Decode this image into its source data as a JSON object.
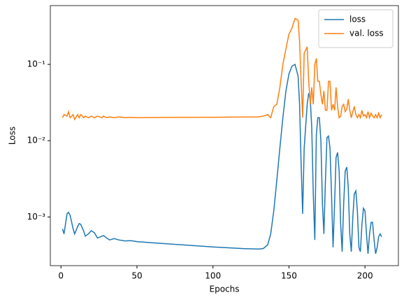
{
  "chart_data": {
    "type": "line",
    "xlabel": "Epochs",
    "ylabel": "Loss",
    "yscale": "log",
    "grid": false,
    "legend": "upper right",
    "xlim": [
      -7,
      222
    ],
    "ylim": [
      0.00023,
      0.59
    ],
    "xticks": [
      0,
      50,
      100,
      150,
      200
    ],
    "yticks": [
      {
        "value": 0.001,
        "label": "10⁻³"
      },
      {
        "value": 0.01,
        "label": "10⁻²"
      },
      {
        "value": 0.1,
        "label": "10⁻¹"
      }
    ],
    "x": [
      1,
      2,
      4,
      5,
      6,
      8,
      9,
      11,
      12,
      13,
      15,
      16,
      18,
      20,
      22,
      24,
      27,
      28,
      30,
      32,
      35,
      38,
      42,
      46,
      50,
      60,
      80,
      100,
      120,
      130,
      133,
      136,
      138,
      140,
      142,
      144,
      146,
      148,
      150,
      152,
      154,
      156,
      157,
      158,
      159,
      160,
      162,
      163,
      164,
      165,
      166,
      167,
      168,
      169,
      170,
      171,
      172,
      173,
      174,
      175,
      176,
      177,
      178,
      179,
      180,
      181,
      182,
      183,
      184,
      185,
      186,
      187,
      188,
      189,
      190,
      191,
      192,
      193,
      194,
      195,
      196,
      197,
      198,
      199,
      200,
      201,
      202,
      203,
      204,
      205,
      206,
      207,
      208,
      209,
      210,
      211
    ],
    "series": [
      {
        "name": "loss",
        "color": "#1f77b4",
        "values": [
          0.0007,
          0.0006,
          0.0011,
          0.00115,
          0.00105,
          0.0007,
          0.0006,
          0.00075,
          0.00082,
          0.0008,
          0.00065,
          0.00056,
          0.0006,
          0.00066,
          0.00062,
          0.00053,
          0.00056,
          0.00057,
          0.00053,
          0.0005,
          0.00052,
          0.0005,
          0.000485,
          0.00049,
          0.000475,
          0.00046,
          0.00043,
          0.000405,
          0.000385,
          0.00038,
          0.000385,
          0.00043,
          0.0006,
          0.0012,
          0.003,
          0.008,
          0.02,
          0.045,
          0.075,
          0.095,
          0.1,
          0.07,
          0.03,
          0.005,
          0.0011,
          0.008,
          0.03,
          0.042,
          0.035,
          0.015,
          0.002,
          0.0005,
          0.012,
          0.02,
          0.02,
          0.01,
          0.0015,
          0.0006,
          0.003,
          0.011,
          0.0115,
          0.008,
          0.002,
          0.0004,
          0.0015,
          0.006,
          0.007,
          0.004,
          0.0008,
          0.00035,
          0.0015,
          0.004,
          0.0045,
          0.0025,
          0.0006,
          0.00035,
          0.001,
          0.002,
          0.0022,
          0.0012,
          0.0004,
          0.00035,
          0.0008,
          0.0013,
          0.0012,
          0.0006,
          0.00033,
          0.0006,
          0.00085,
          0.00085,
          0.0005,
          0.00033,
          0.0004,
          0.00055,
          0.0006,
          0.00055
        ]
      },
      {
        "name": "val. loss",
        "color": "#ff7f0e",
        "values": [
          0.02,
          0.022,
          0.021,
          0.024,
          0.02,
          0.022,
          0.019,
          0.022,
          0.02,
          0.022,
          0.02,
          0.021,
          0.02,
          0.021,
          0.02,
          0.021,
          0.02,
          0.021,
          0.02,
          0.0205,
          0.02,
          0.0205,
          0.02,
          0.0202,
          0.02,
          0.0201,
          0.0202,
          0.0203,
          0.0204,
          0.0205,
          0.021,
          0.022,
          0.02,
          0.028,
          0.03,
          0.05,
          0.1,
          0.16,
          0.25,
          0.3,
          0.4,
          0.38,
          0.2,
          0.06,
          0.02,
          0.14,
          0.17,
          0.06,
          0.03,
          0.05,
          0.03,
          0.1,
          0.12,
          0.06,
          0.06,
          0.04,
          0.03,
          0.045,
          0.025,
          0.025,
          0.06,
          0.06,
          0.025,
          0.03,
          0.025,
          0.05,
          0.028,
          0.02,
          0.021,
          0.028,
          0.03,
          0.024,
          0.026,
          0.035,
          0.025,
          0.02,
          0.024,
          0.028,
          0.022,
          0.02,
          0.022,
          0.02,
          0.025,
          0.021,
          0.022,
          0.02,
          0.024,
          0.02,
          0.023,
          0.021,
          0.02,
          0.022,
          0.02,
          0.023,
          0.02,
          0.022
        ]
      }
    ]
  }
}
